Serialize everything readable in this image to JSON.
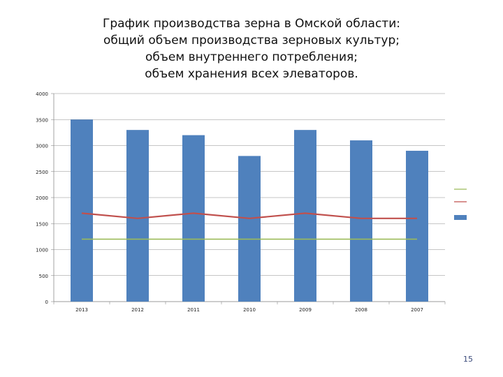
{
  "slide": {
    "title_lines": [
      "График производства зерна в Омской области:",
      "общий объем производства зерновых культур;",
      "объем внутреннего потребления;",
      "объем хранения всех элеваторов."
    ],
    "page_number": "15"
  },
  "chart_data": {
    "type": "bar",
    "categories": [
      "2013",
      "2012",
      "2011",
      "2010",
      "2009",
      "2008",
      "2007"
    ],
    "series": [
      {
        "type": "bar",
        "values": [
          3500,
          3300,
          3200,
          2800,
          3300,
          3100,
          2900
        ],
        "color": "#4f81bd"
      },
      {
        "type": "line",
        "values": [
          1700,
          1600,
          1700,
          1600,
          1700,
          1600,
          1600
        ],
        "color": "#c0504d"
      },
      {
        "type": "line",
        "values": [
          1200,
          1200,
          1200,
          1200,
          1200,
          1200,
          1200
        ],
        "color": "#9bbb59"
      }
    ],
    "ylim": [
      0,
      4000
    ],
    "yticks": [
      0,
      500,
      1000,
      1500,
      2000,
      2500,
      3000,
      3500,
      4000
    ],
    "grid": true,
    "legend_position": "right",
    "legend_order": [
      2,
      1,
      0
    ]
  }
}
